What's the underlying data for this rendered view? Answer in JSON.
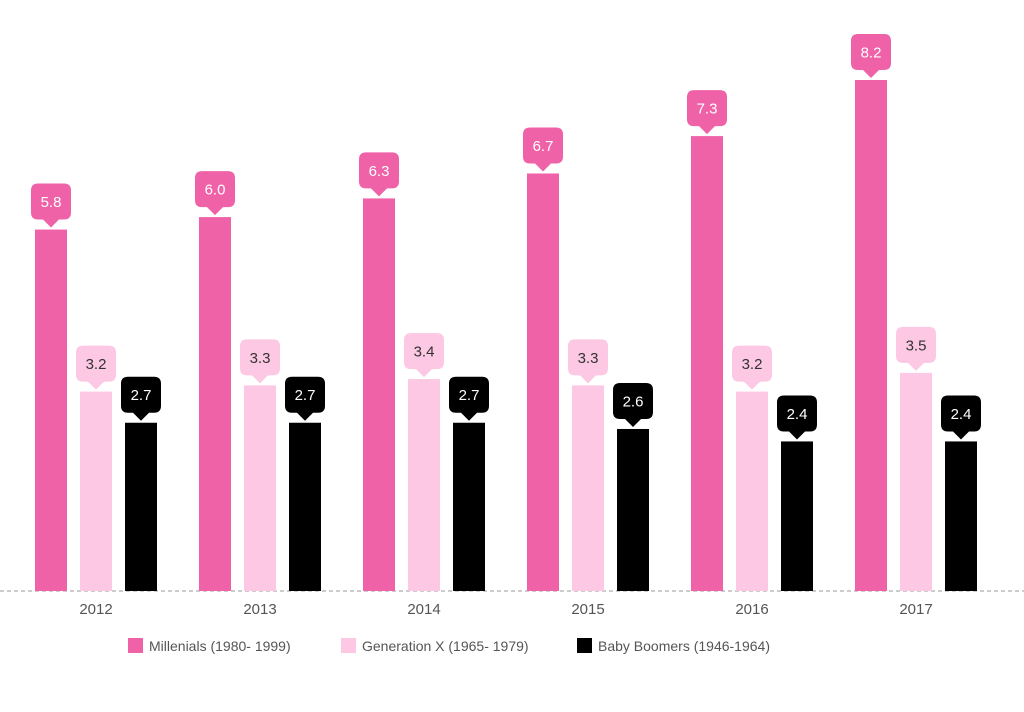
{
  "chart_data": {
    "type": "bar",
    "title": "",
    "xlabel": "",
    "ylabel": "",
    "ylim": [
      0,
      8.2
    ],
    "grid": false,
    "legend_position": "bottom-center",
    "categories": [
      "2012",
      "2013",
      "2014",
      "2015",
      "2016",
      "2017"
    ],
    "series": [
      {
        "name": "Millenials (1980- 1999)",
        "color": "#ef62a8",
        "label_text_color": "#ffffff",
        "values": [
          5.8,
          6.0,
          6.3,
          6.7,
          7.3,
          8.2
        ],
        "labels": [
          "5.8",
          "6.0",
          "6.3",
          "6.7",
          "7.3",
          "8.2"
        ]
      },
      {
        "name": "Generation X (1965- 1979)",
        "color": "#fcc8e3",
        "label_text_color": "#333333",
        "values": [
          3.2,
          3.3,
          3.4,
          3.3,
          3.2,
          3.5
        ],
        "labels": [
          "3.2",
          "3.3",
          "3.4",
          "3.3",
          "3.2",
          "3.5"
        ]
      },
      {
        "name": "Baby Boomers (1946-1964)",
        "color": "#000000",
        "label_text_color": "#ffffff",
        "values": [
          2.7,
          2.7,
          2.7,
          2.6,
          2.4,
          2.4
        ],
        "labels": [
          "2.7",
          "2.7",
          "2.7",
          "2.6",
          "2.4",
          "2.4"
        ]
      }
    ]
  }
}
